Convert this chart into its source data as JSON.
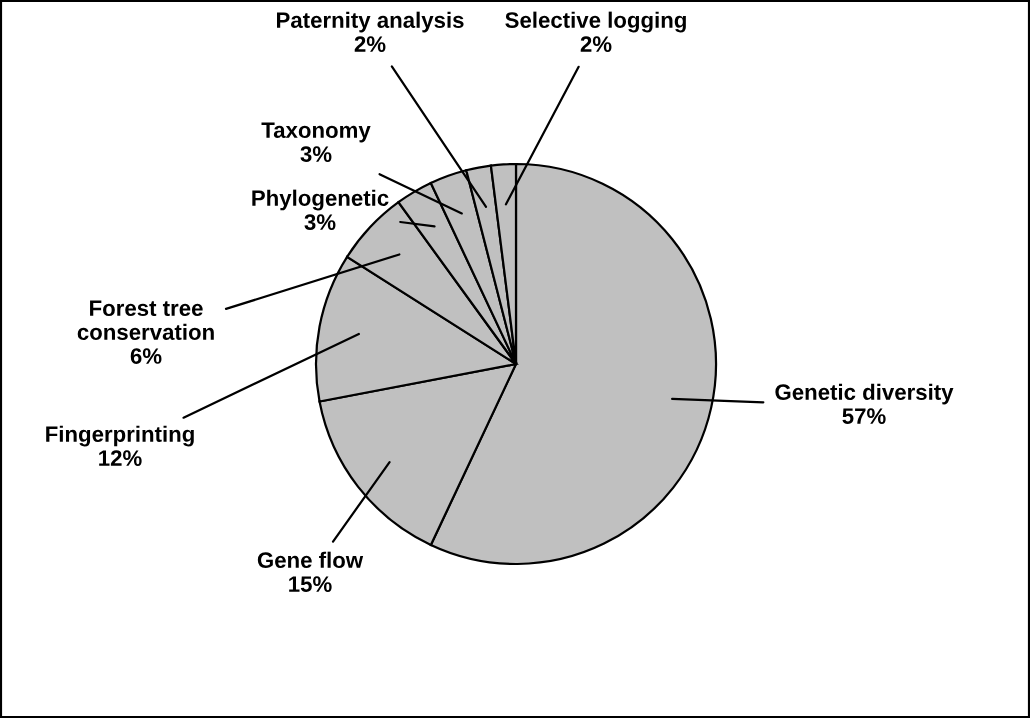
{
  "chart_data": {
    "type": "pie",
    "categories": [
      "Genetic diversity",
      "Gene flow",
      "Fingerprinting",
      "Forest tree\nconservation",
      "Phylogenetic",
      "Taxonomy",
      "Paternity analysis",
      "Selective logging"
    ],
    "values": [
      57,
      15,
      12,
      6,
      3,
      3,
      2,
      2
    ],
    "value_labels": [
      "57%",
      "15%",
      "12%",
      "6%",
      "3%",
      "3%",
      "2%",
      "2%"
    ],
    "colors": [
      "#c0c0c0",
      "#c0c0c0",
      "#c0c0c0",
      "#c0c0c0",
      "#c0c0c0",
      "#c0c0c0",
      "#c0c0c0",
      "#c0c0c0"
    ],
    "legend": false
  }
}
